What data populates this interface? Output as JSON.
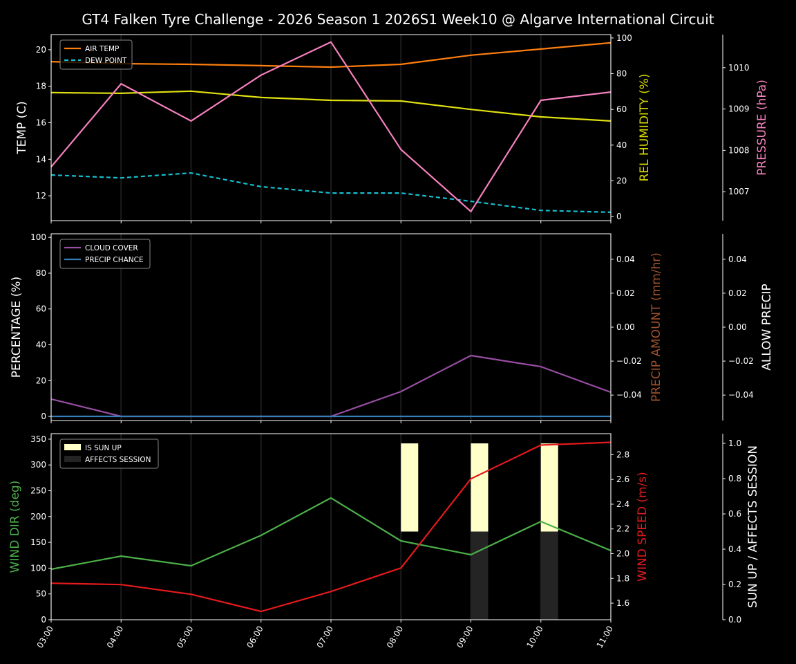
{
  "title": "GT4 Falken Tyre Challenge - 2026 Season 1 2026S1 Week10 @ Algarve International Circuit",
  "x_ticks": [
    "03:00",
    "04:00",
    "05:00",
    "06:00",
    "07:00",
    "08:00",
    "09:00",
    "10:00",
    "11:00"
  ],
  "chart_data": [
    {
      "type": "line",
      "x": [
        "03:00",
        "04:00",
        "05:00",
        "06:00",
        "07:00",
        "08:00",
        "09:00",
        "10:00",
        "11:00"
      ],
      "axes": [
        {
          "label": "TEMP (C)",
          "color": "#ffffff",
          "ylim": [
            10.64,
            20.83
          ],
          "ticks": [
            12,
            14,
            16,
            18,
            20
          ],
          "decimals": 0
        },
        {
          "label": "REL HUMIDITY (%)",
          "color": "#d8d800",
          "ylim": [
            -2.3,
            101.9
          ],
          "ticks": [
            0,
            20,
            40,
            60,
            80,
            100
          ],
          "decimals": 0
        },
        {
          "label": "PRESSURE (hPa)",
          "color": "#f781bf",
          "ylim": [
            1006.3,
            1010.8
          ],
          "ticks": [
            1007,
            1008,
            1009,
            1010
          ],
          "decimals": 0
        }
      ],
      "series": [
        {
          "name": "AIR TEMP",
          "axis": 0,
          "color": "#ff7f0e",
          "dashed": false,
          "legend": true,
          "values": [
            19.35,
            19.24,
            19.2,
            19.13,
            19.05,
            19.2,
            19.7,
            20.04,
            20.38
          ]
        },
        {
          "name": "DEW POINT",
          "axis": 0,
          "color": "#17becf",
          "dashed": true,
          "legend": true,
          "values": [
            13.14,
            12.98,
            13.25,
            12.5,
            12.15,
            12.15,
            11.7,
            11.2,
            11.1
          ]
        },
        {
          "axis": 1,
          "color": "#e0e010",
          "dashed": false,
          "legend": false,
          "values": [
            69.4,
            69.0,
            70.2,
            66.7,
            65.1,
            64.7,
            60.0,
            55.8,
            53.5
          ]
        },
        {
          "axis": 2,
          "color": "#f781bf",
          "dashed": false,
          "legend": false,
          "values": [
            1007.6,
            1009.61,
            1008.71,
            1009.82,
            1010.62,
            1008.02,
            1006.52,
            1009.21,
            1009.41
          ]
        }
      ]
    },
    {
      "type": "line",
      "x": [
        "03:00",
        "04:00",
        "05:00",
        "06:00",
        "07:00",
        "08:00",
        "09:00",
        "10:00",
        "11:00"
      ],
      "axes": [
        {
          "label": "PERCENTAGE (%)",
          "color": "#ffffff",
          "ylim": [
            -2.3,
            102
          ],
          "ticks": [
            0,
            20,
            40,
            60,
            80,
            100
          ],
          "decimals": 0
        },
        {
          "label": "PRECIP AMOUNT (mm/hr)",
          "color": "#a0522d",
          "ylim": [
            -0.055,
            0.055
          ],
          "ticks": [
            -0.04,
            -0.02,
            0.0,
            0.02,
            0.04
          ],
          "decimals": 2
        },
        {
          "label": "ALLOW PRECIP",
          "color": "#ffffff",
          "ylim": [
            -0.055,
            0.055
          ],
          "ticks": [
            -0.04,
            -0.02,
            0.0,
            0.02,
            0.04
          ],
          "decimals": 2
        }
      ],
      "series": [
        {
          "name": "CLOUD COVER",
          "axis": 0,
          "color": "#984ea3",
          "dashed": false,
          "legend": true,
          "values": [
            9.7,
            0,
            0,
            0,
            0,
            13.9,
            34,
            27.8,
            13.5
          ]
        },
        {
          "name": "PRECIP CHANCE",
          "axis": 0,
          "color": "#377eb8",
          "dashed": false,
          "legend": true,
          "values": [
            0,
            0,
            0,
            0,
            0,
            0,
            0,
            0,
            0
          ]
        }
      ]
    },
    {
      "type": "line",
      "x": [
        "03:00",
        "04:00",
        "05:00",
        "06:00",
        "07:00",
        "08:00",
        "09:00",
        "10:00",
        "11:00"
      ],
      "axes": [
        {
          "label": "WIND DIR (deg)",
          "color": "#4daf4a",
          "ylim": [
            0,
            360.6
          ],
          "ticks": [
            0,
            50,
            100,
            150,
            200,
            250,
            300,
            350
          ],
          "decimals": 0
        },
        {
          "label": "WIND SPEED (m/s)",
          "color": "#e41a1c",
          "ylim": [
            1.466,
            2.97
          ],
          "ticks": [
            1.6,
            1.8,
            2.0,
            2.2,
            2.4,
            2.6,
            2.8
          ],
          "decimals": 1
        },
        {
          "label": "SUN UP / AFFECTS SESSION",
          "color": "#ffffff",
          "ylim": [
            0,
            1.055
          ],
          "ticks": [
            0.0,
            0.2,
            0.4,
            0.6,
            0.8,
            1.0
          ],
          "decimals": 1
        }
      ],
      "bars": [
        {
          "name": "IS SUN UP",
          "axis": 2,
          "color": "#ffffc8",
          "bottom": 0.5,
          "values": [
            0,
            0,
            0,
            0,
            0,
            0.5,
            0.5,
            0.5,
            0
          ]
        },
        {
          "name": "AFFECTS SESSION",
          "axis": 2,
          "color": "#242424",
          "bottom": 0,
          "values": [
            0,
            0,
            0,
            0,
            0,
            0,
            0.5,
            0.5,
            0
          ]
        }
      ],
      "series": [
        {
          "axis": 0,
          "color": "#4daf4a",
          "dashed": false,
          "legend": false,
          "values": [
            97.9,
            123.3,
            104.6,
            163.5,
            236,
            152.8,
            126,
            190.3,
            134
          ]
        },
        {
          "axis": 1,
          "color": "#e41a1c",
          "dashed": false,
          "legend": false,
          "values": [
            1.761,
            1.75,
            1.672,
            1.533,
            1.694,
            1.884,
            2.605,
            2.878,
            2.9
          ]
        }
      ]
    }
  ]
}
